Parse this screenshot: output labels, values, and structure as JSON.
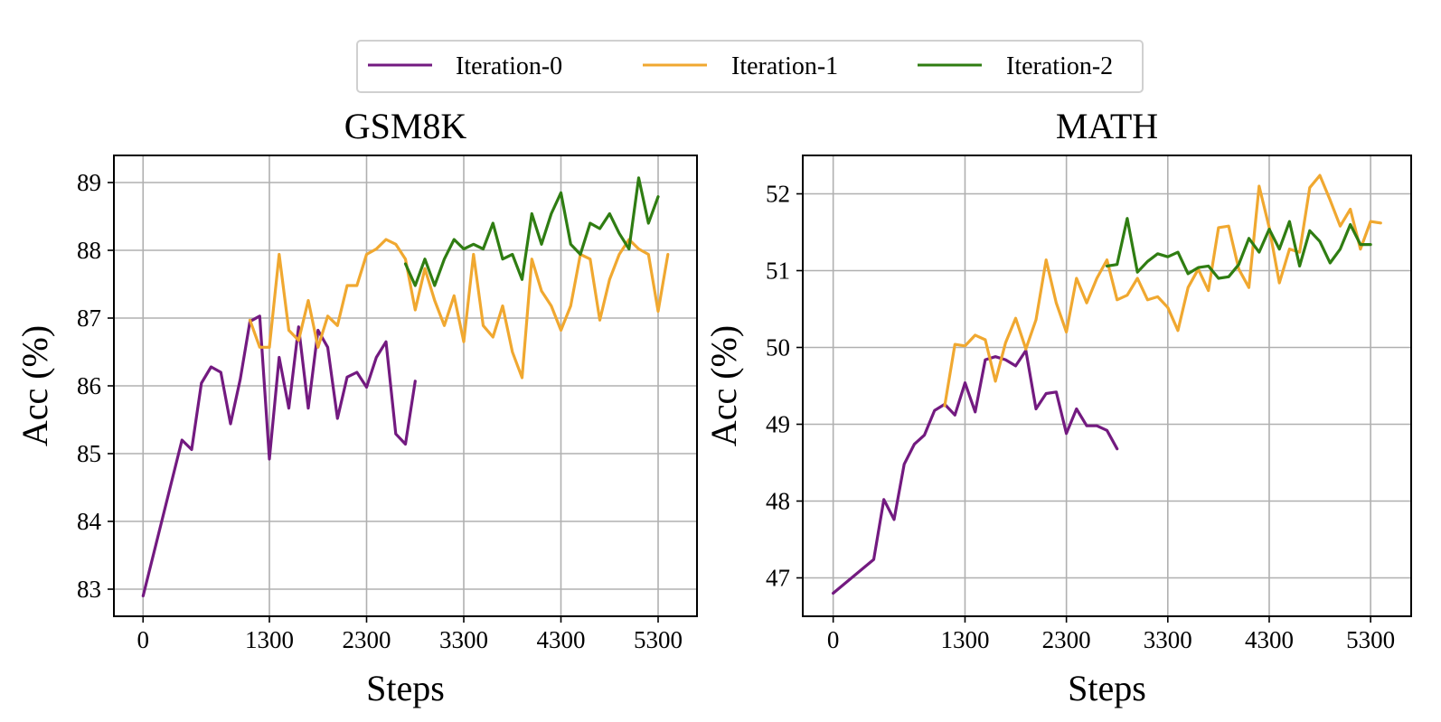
{
  "legend": {
    "items": [
      {
        "label": "Iteration-0",
        "color": "#731a80"
      },
      {
        "label": "Iteration-1",
        "color": "#f0a830"
      },
      {
        "label": "Iteration-2",
        "color": "#2f7d12"
      }
    ]
  },
  "chart_data": [
    {
      "type": "line",
      "title": "GSM8K",
      "xlabel": "Steps",
      "ylabel": "Acc (%)",
      "xlim": [
        -300,
        5700
      ],
      "ylim": [
        82.6,
        89.4
      ],
      "xticks": [
        0,
        1300,
        2300,
        3300,
        4300,
        5300
      ],
      "yticks": [
        83,
        84,
        85,
        86,
        87,
        88,
        89
      ],
      "grid": true,
      "legend": "top-center",
      "series": [
        {
          "name": "Iteration-0",
          "color": "#731a80",
          "x": [
            0,
            400,
            500,
            600,
            700,
            800,
            900,
            1000,
            1100,
            1200,
            1300,
            1400,
            1500,
            1600,
            1700,
            1800,
            1900,
            2000,
            2100,
            2200,
            2300,
            2400,
            2500,
            2600,
            2700,
            2800
          ],
          "y": [
            82.9,
            85.2,
            85.06,
            86.04,
            86.28,
            86.2,
            85.44,
            86.1,
            86.95,
            87.03,
            84.92,
            86.42,
            85.67,
            86.87,
            85.67,
            86.82,
            86.57,
            85.52,
            86.13,
            86.2,
            85.98,
            86.42,
            86.65,
            85.29,
            85.14,
            86.07
          ]
        },
        {
          "name": "Iteration-1",
          "color": "#f0a830",
          "x": [
            1100,
            1200,
            1300,
            1400,
            1500,
            1600,
            1700,
            1800,
            1900,
            2000,
            2100,
            2200,
            2300,
            2400,
            2500,
            2600,
            2700,
            2800,
            2900,
            3000,
            3100,
            3200,
            3300,
            3400,
            3500,
            3600,
            3700,
            3800,
            3900,
            4000,
            4100,
            4200,
            4300,
            4400,
            4500,
            4600,
            4700,
            4800,
            4900,
            5000,
            5100,
            5200,
            5300,
            5400
          ],
          "y": [
            86.97,
            86.57,
            86.57,
            87.94,
            86.82,
            86.67,
            87.26,
            86.57,
            87.03,
            86.89,
            87.48,
            87.48,
            87.94,
            88.02,
            88.16,
            88.09,
            87.87,
            87.12,
            87.73,
            87.26,
            86.89,
            87.33,
            86.65,
            87.94,
            86.89,
            86.72,
            87.18,
            86.5,
            86.12,
            87.87,
            87.4,
            87.18,
            86.82,
            87.18,
            87.94,
            87.87,
            86.97,
            87.57,
            87.94,
            88.16,
            88.02,
            87.94,
            87.1,
            87.94
          ]
        },
        {
          "name": "Iteration-2",
          "color": "#2f7d12",
          "x": [
            2700,
            2800,
            2900,
            3000,
            3100,
            3200,
            3300,
            3400,
            3500,
            3600,
            3700,
            3800,
            3900,
            4000,
            4100,
            4200,
            4300,
            4400,
            4500,
            4600,
            4700,
            4800,
            4900,
            5000,
            5100,
            5200,
            5300
          ],
          "y": [
            87.8,
            87.48,
            87.87,
            87.48,
            87.87,
            88.16,
            88.02,
            88.09,
            88.02,
            88.4,
            87.87,
            87.94,
            87.57,
            88.54,
            88.09,
            88.54,
            88.85,
            88.09,
            87.94,
            88.4,
            88.32,
            88.54,
            88.25,
            88.02,
            89.07,
            88.4,
            88.79
          ]
        }
      ]
    },
    {
      "type": "line",
      "title": "MATH",
      "xlabel": "Steps",
      "ylabel": "Acc (%)",
      "xlim": [
        -300,
        5700
      ],
      "ylim": [
        46.5,
        52.5
      ],
      "xticks": [
        0,
        1300,
        2300,
        3300,
        4300,
        5300
      ],
      "yticks": [
        47,
        48,
        49,
        50,
        51,
        52
      ],
      "grid": true,
      "series": [
        {
          "name": "Iteration-0",
          "color": "#731a80",
          "x": [
            0,
            400,
            500,
            600,
            700,
            800,
            900,
            1000,
            1100,
            1200,
            1300,
            1400,
            1500,
            1600,
            1700,
            1800,
            1900,
            2000,
            2100,
            2200,
            2300,
            2400,
            2500,
            2600,
            2700,
            2800
          ],
          "y": [
            46.8,
            47.24,
            48.02,
            47.76,
            48.48,
            48.74,
            48.86,
            49.18,
            49.26,
            49.12,
            49.54,
            49.16,
            49.84,
            49.88,
            49.84,
            49.76,
            49.96,
            49.2,
            49.4,
            49.42,
            48.88,
            49.2,
            48.98,
            48.98,
            48.92,
            48.68
          ]
        },
        {
          "name": "Iteration-1",
          "color": "#f0a830",
          "x": [
            1100,
            1200,
            1300,
            1400,
            1500,
            1600,
            1700,
            1800,
            1900,
            2000,
            2100,
            2200,
            2300,
            2400,
            2500,
            2600,
            2700,
            2800,
            2900,
            3000,
            3100,
            3200,
            3300,
            3400,
            3500,
            3600,
            3700,
            3800,
            3900,
            4000,
            4100,
            4200,
            4300,
            4400,
            4500,
            4600,
            4700,
            4800,
            4900,
            5000,
            5100,
            5200,
            5300,
            5400
          ],
          "y": [
            49.24,
            50.04,
            50.02,
            50.16,
            50.1,
            49.56,
            50.06,
            50.38,
            49.98,
            50.36,
            51.14,
            50.58,
            50.2,
            50.9,
            50.58,
            50.9,
            51.14,
            50.62,
            50.68,
            50.9,
            50.62,
            50.66,
            50.52,
            50.22,
            50.78,
            51.02,
            50.74,
            51.56,
            51.58,
            51.02,
            50.78,
            52.1,
            51.56,
            50.84,
            51.28,
            51.24,
            52.08,
            52.24,
            51.92,
            51.58,
            51.8,
            51.28,
            51.64,
            51.62
          ]
        },
        {
          "name": "Iteration-2",
          "color": "#2f7d12",
          "x": [
            2700,
            2800,
            2900,
            3000,
            3100,
            3200,
            3300,
            3400,
            3500,
            3600,
            3700,
            3800,
            3900,
            4000,
            4100,
            4200,
            4300,
            4400,
            4500,
            4600,
            4700,
            4800,
            4900,
            5000,
            5100,
            5200,
            5300
          ],
          "y": [
            51.06,
            51.08,
            51.68,
            50.98,
            51.12,
            51.22,
            51.18,
            51.24,
            50.96,
            51.04,
            51.06,
            50.9,
            50.92,
            51.08,
            51.42,
            51.24,
            51.54,
            51.28,
            51.64,
            51.06,
            51.52,
            51.38,
            51.1,
            51.28,
            51.6,
            51.34,
            51.34
          ]
        }
      ]
    }
  ]
}
